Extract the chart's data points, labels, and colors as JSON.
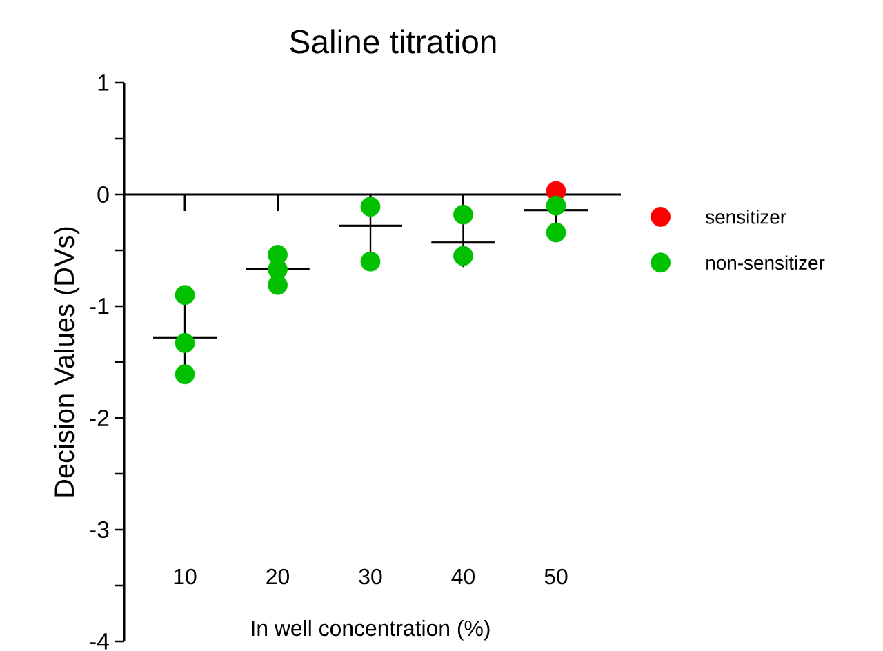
{
  "chart_data": {
    "type": "scatter",
    "title": "Saline titration",
    "xlabel": "In well concentration (%)",
    "ylabel": "Decision Values (DVs)",
    "categories": [
      "10",
      "20",
      "30",
      "40",
      "50"
    ],
    "ylim": [
      -4,
      1
    ],
    "yticks": [
      -4,
      -3,
      -2,
      -1,
      0,
      1
    ],
    "legend": "right",
    "marker": "circle",
    "ref_lines": [
      {
        "axis": "y",
        "value": 0,
        "color": "#000000"
      }
    ],
    "series": [
      {
        "name": "sensitizer",
        "color": "#ff0000",
        "x": [
          "50"
        ],
        "values": [
          0.03
        ]
      },
      {
        "name": "non-sensitizer",
        "color": "#00c000",
        "x": [
          "10",
          "10",
          "10",
          "20",
          "20",
          "20",
          "30",
          "30",
          "30",
          "40",
          "40",
          "40",
          "50",
          "50"
        ],
        "values": [
          -0.9,
          -1.33,
          -1.61,
          -0.54,
          -0.67,
          -0.81,
          -0.11,
          null,
          -0.6,
          -0.18,
          -0.55,
          null,
          -0.1,
          -0.34
        ]
      },
      {
        "type": "box",
        "color": "#000000",
        "x": [
          "10",
          "20",
          "30",
          "40",
          "50"
        ],
        "boxes": [
          {
            "low": -1.63,
            "q1": -1.28,
            "median": -1.28,
            "q3": -1.28,
            "high": -0.93
          },
          {
            "low": -0.81,
            "q1": -0.67,
            "median": -0.67,
            "q3": -0.67,
            "high": -0.53
          },
          {
            "low": -0.55,
            "q1": -0.28,
            "median": -0.28,
            "q3": -0.28,
            "high": -0.01
          },
          {
            "low": -0.65,
            "q1": -0.43,
            "median": -0.43,
            "q3": -0.43,
            "high": -0.21
          },
          {
            "low": -0.33,
            "q1": -0.14,
            "median": -0.14,
            "q3": -0.14,
            "high": 0.05
          }
        ]
      }
    ]
  }
}
